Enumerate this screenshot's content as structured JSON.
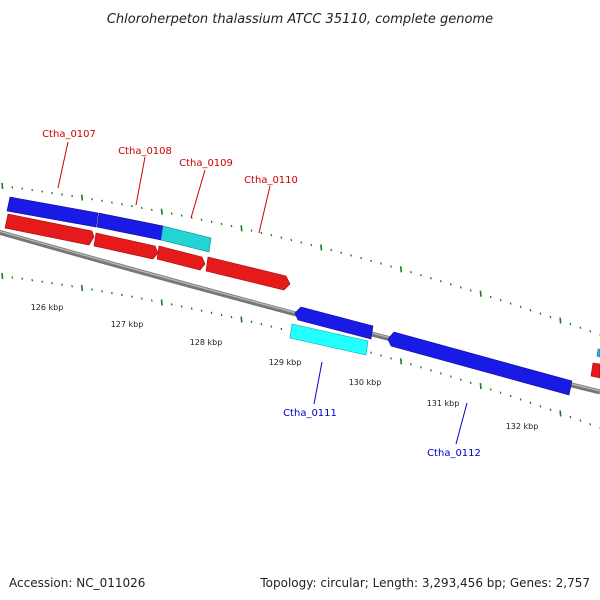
{
  "title": "Chloroherpeton thalassium ATCC 35110, complete genome",
  "footer": {
    "accession": "Accession: NC_011026",
    "summary": "Topology: circular; Length: 3,293,456 bp; Genes: 2,757"
  },
  "colors": {
    "forward_gene": "#1a1ae6",
    "reverse_gene": "#e61a1a",
    "highlight_gene": "#22d4d4",
    "backbone": "#777777",
    "ticks": "#1e7a1e",
    "label_red": "#cc0000",
    "label_blue": "#0000cc"
  },
  "ticks": [
    {
      "label": "126 kbp"
    },
    {
      "label": "127 kbp"
    },
    {
      "label": "128 kbp"
    },
    {
      "label": "129 kbp"
    },
    {
      "label": "130 kbp"
    },
    {
      "label": "131 kbp"
    },
    {
      "label": "132 kbp"
    }
  ],
  "genes": [
    {
      "label": "Ctha_0107"
    },
    {
      "label": "Ctha_0108"
    },
    {
      "label": "Ctha_0109"
    },
    {
      "label": "Ctha_0110"
    },
    {
      "label": "Ctha_0111"
    },
    {
      "label": "Ctha_0112"
    }
  ]
}
